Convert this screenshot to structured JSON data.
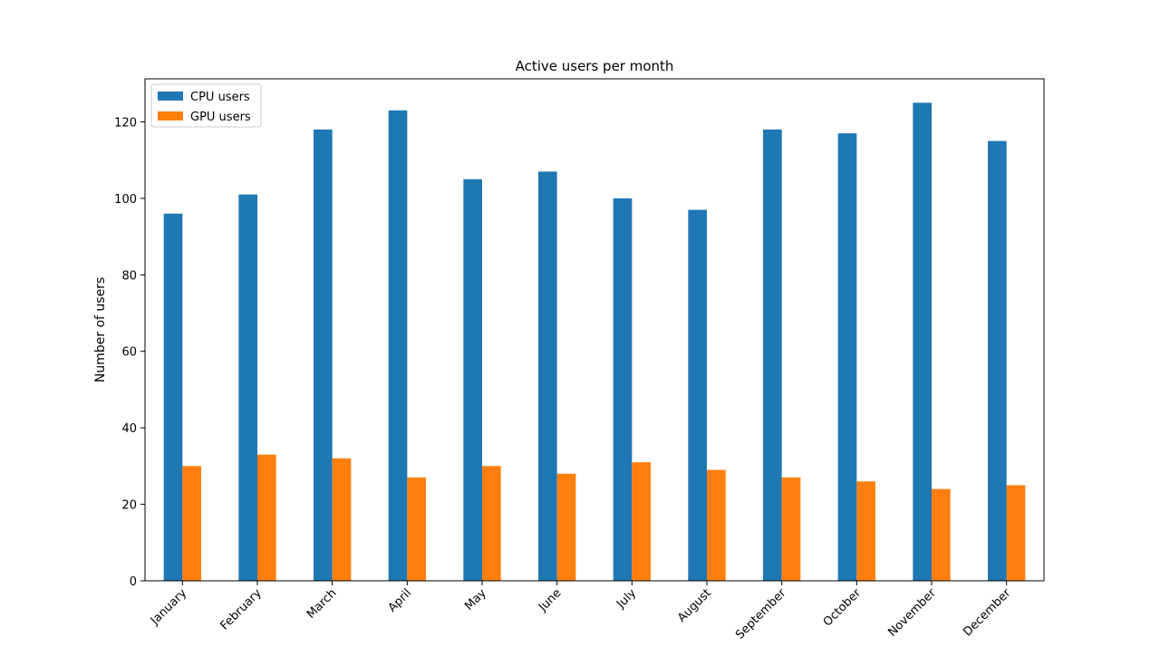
{
  "chart_data": {
    "type": "bar",
    "title": "Active users per month",
    "xlabel": "",
    "ylabel": "Number of users",
    "categories": [
      "January",
      "February",
      "March",
      "April",
      "May",
      "June",
      "July",
      "August",
      "September",
      "October",
      "November",
      "December"
    ],
    "series": [
      {
        "name": "CPU users",
        "color": "#1f77b4",
        "values": [
          96,
          101,
          118,
          123,
          105,
          107,
          100,
          97,
          118,
          117,
          125,
          115
        ]
      },
      {
        "name": "GPU users",
        "color": "#ff7f0e",
        "values": [
          30,
          33,
          32,
          27,
          30,
          28,
          31,
          29,
          27,
          26,
          24,
          25
        ]
      }
    ],
    "ylim": [
      0,
      131.25
    ],
    "yticks": [
      0,
      20,
      40,
      60,
      80,
      100,
      120
    ],
    "xtick_rotation_deg": 45,
    "grid": false,
    "legend_position": "upper-left"
  }
}
